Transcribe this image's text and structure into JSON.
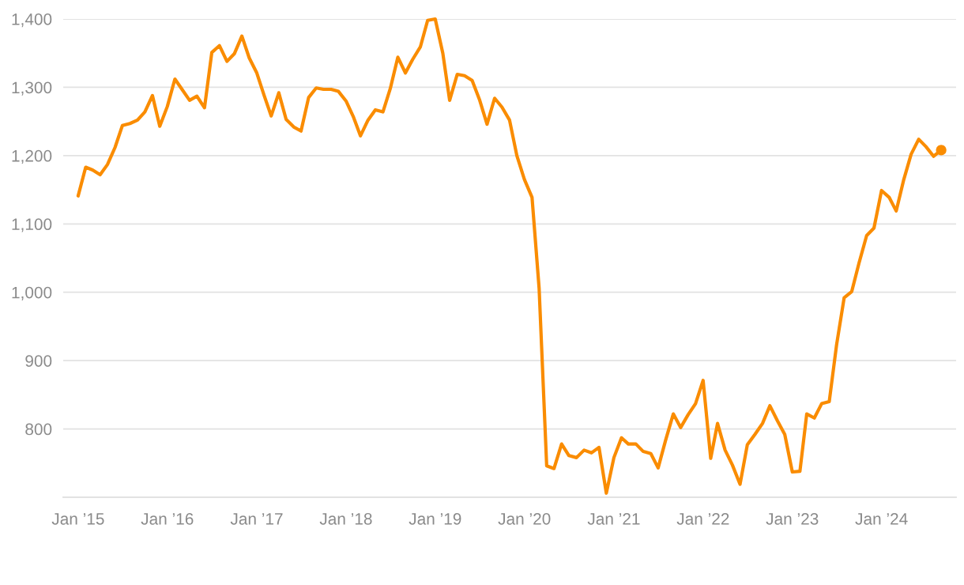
{
  "chart_data": {
    "type": "line",
    "x": [
      "2015-01",
      "2015-02",
      "2015-03",
      "2015-04",
      "2015-05",
      "2015-06",
      "2015-07",
      "2015-08",
      "2015-09",
      "2015-10",
      "2015-11",
      "2015-12",
      "2016-01",
      "2016-02",
      "2016-03",
      "2016-04",
      "2016-05",
      "2016-06",
      "2016-07",
      "2016-08",
      "2016-09",
      "2016-10",
      "2016-11",
      "2016-12",
      "2017-01",
      "2017-02",
      "2017-03",
      "2017-04",
      "2017-05",
      "2017-06",
      "2017-07",
      "2017-08",
      "2017-09",
      "2017-10",
      "2017-11",
      "2017-12",
      "2018-01",
      "2018-02",
      "2018-03",
      "2018-04",
      "2018-05",
      "2018-06",
      "2018-07",
      "2018-08",
      "2018-09",
      "2018-10",
      "2018-11",
      "2018-12",
      "2019-01",
      "2019-02",
      "2019-03",
      "2019-04",
      "2019-05",
      "2019-06",
      "2019-07",
      "2019-08",
      "2019-09",
      "2019-10",
      "2019-11",
      "2019-12",
      "2020-01",
      "2020-02",
      "2020-03",
      "2020-04",
      "2020-05",
      "2020-06",
      "2020-07",
      "2020-08",
      "2020-09",
      "2020-10",
      "2020-11",
      "2020-12",
      "2021-01",
      "2021-02",
      "2021-03",
      "2021-04",
      "2021-05",
      "2021-06",
      "2021-07",
      "2021-08",
      "2021-09",
      "2021-10",
      "2021-11",
      "2021-12",
      "2022-01",
      "2022-02",
      "2022-03",
      "2022-04",
      "2022-05",
      "2022-06",
      "2022-07",
      "2022-08",
      "2022-09",
      "2022-10",
      "2022-11",
      "2022-12",
      "2023-01",
      "2023-02",
      "2023-03",
      "2023-04",
      "2023-05",
      "2023-06",
      "2023-07",
      "2023-08",
      "2023-09",
      "2023-10",
      "2023-11",
      "2023-12",
      "2024-01",
      "2024-02",
      "2024-03",
      "2024-04",
      "2024-05",
      "2024-06",
      "2024-07",
      "2024-08",
      "2024-09"
    ],
    "series": [
      {
        "color": "#fa8c00",
        "values": [
          1141,
          1183,
          1179,
          1172,
          1187,
          1212,
          1244,
          1247,
          1252,
          1264,
          1288,
          1243,
          1272,
          1312,
          1297,
          1281,
          1287,
          1270,
          1351,
          1361,
          1338,
          1349,
          1375,
          1343,
          1321,
          1287,
          1258,
          1292,
          1253,
          1242,
          1236,
          1285,
          1299,
          1297,
          1297,
          1294,
          1280,
          1256,
          1229,
          1252,
          1267,
          1264,
          1298,
          1344,
          1321,
          1341,
          1359,
          1398,
          1400,
          1350,
          1281,
          1319,
          1317,
          1310,
          1282,
          1246,
          1284,
          1271,
          1252,
          1200,
          1165,
          1139,
          1006,
          746,
          742,
          778,
          761,
          758,
          769,
          765,
          773,
          706,
          758,
          787,
          778,
          778,
          767,
          764,
          743,
          784,
          822,
          802,
          821,
          837,
          871,
          757,
          808,
          769,
          747,
          719,
          777,
          792,
          808,
          834,
          812,
          792,
          737,
          738,
          822,
          816,
          837,
          840,
          923,
          992,
          1001,
          1043,
          1083,
          1094,
          1149,
          1139,
          1119,
          1165,
          1202,
          1224,
          1213,
          1199,
          1208
        ]
      },
      {
        "type": "scatter",
        "color": "#fa8c00",
        "x": [
          "2024-09"
        ],
        "values": [
          1208
        ]
      }
    ],
    "xlim": [
      "2014-11",
      "2024-11"
    ],
    "xticks": [
      {
        "value": "2015-01",
        "label": "Jan ’15"
      },
      {
        "value": "2016-01",
        "label": "Jan ’16"
      },
      {
        "value": "2017-01",
        "label": "Jan ’17"
      },
      {
        "value": "2018-01",
        "label": "Jan ’18"
      },
      {
        "value": "2019-01",
        "label": "Jan ’19"
      },
      {
        "value": "2020-01",
        "label": "Jan ’20"
      },
      {
        "value": "2021-01",
        "label": "Jan ’21"
      },
      {
        "value": "2022-01",
        "label": "Jan ’22"
      },
      {
        "value": "2023-01",
        "label": "Jan ’23"
      },
      {
        "value": "2024-01",
        "label": "Jan ’24"
      }
    ],
    "yticks": [
      {
        "value": 800,
        "label": "800"
      },
      {
        "value": 900,
        "label": "900"
      },
      {
        "value": 1000,
        "label": "1,000"
      },
      {
        "value": 1100,
        "label": "1,100"
      },
      {
        "value": 1200,
        "label": "1,200"
      },
      {
        "value": 1300,
        "label": "1,300"
      },
      {
        "value": 1400,
        "label": "1,400"
      }
    ],
    "ylim": [
      700,
      1400
    ],
    "grid": "y"
  }
}
